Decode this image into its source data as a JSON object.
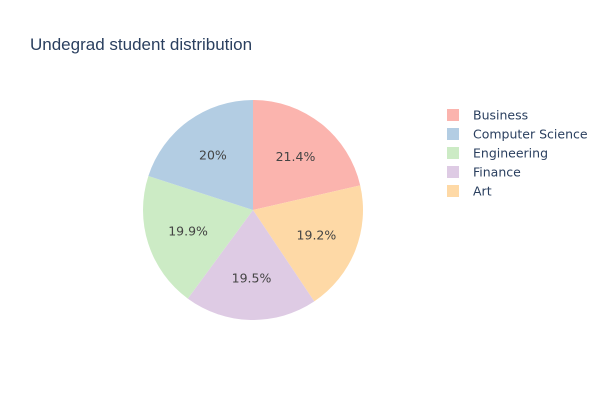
{
  "chart_data": {
    "type": "pie",
    "title": "Undegrad student distribution",
    "slices": [
      {
        "label": "Business",
        "value": 21.4,
        "text": "21.4%",
        "color": "#fbb4ae"
      },
      {
        "label": "Art",
        "value": 19.2,
        "text": "19.2%",
        "color": "#fed9a6"
      },
      {
        "label": "Finance",
        "value": 19.5,
        "text": "19.5%",
        "color": "#decbe4"
      },
      {
        "label": "Engineering",
        "value": 19.9,
        "text": "19.9%",
        "color": "#ccebc5"
      },
      {
        "label": "Computer Science",
        "value": 20.0,
        "text": "20%",
        "color": "#b3cde3"
      }
    ],
    "legend": {
      "placement": "right",
      "entries": [
        "Business",
        "Computer Science",
        "Engineering",
        "Finance",
        "Art"
      ]
    },
    "direction": "clockwise",
    "start": "top"
  }
}
